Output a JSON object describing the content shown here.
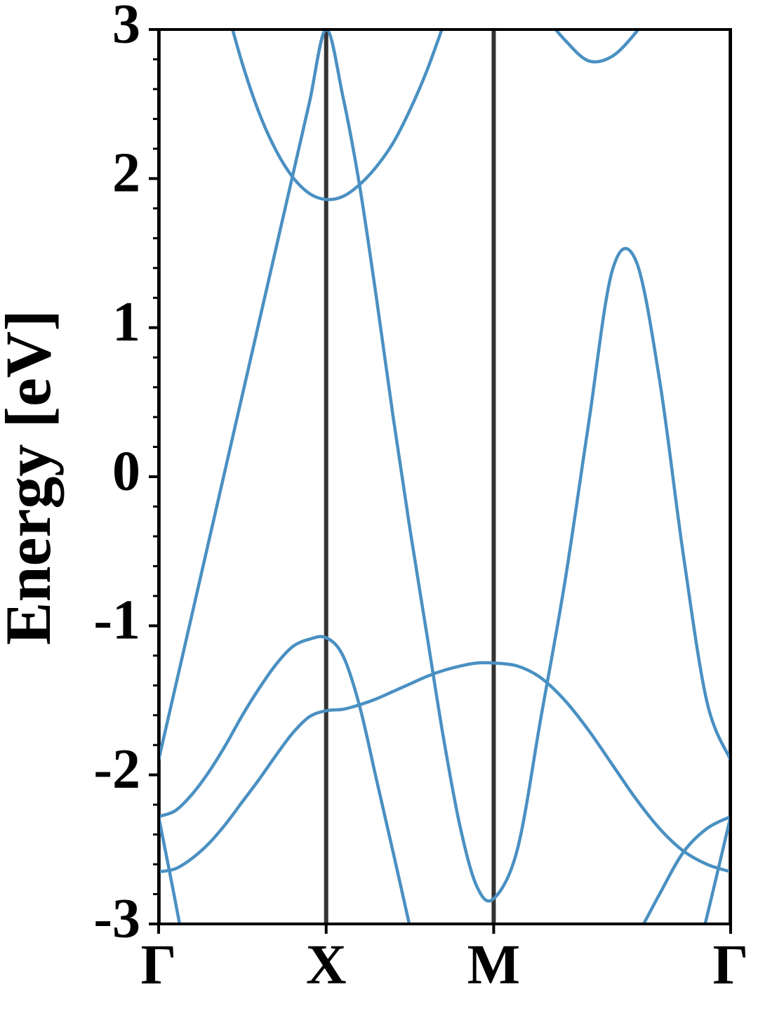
{
  "chart_data": {
    "type": "line",
    "y_label": "Energy [eV]",
    "x": [
      0,
      0.1,
      0.2,
      0.3,
      0.4,
      0.5,
      0.6,
      0.7,
      0.8,
      0.9,
      1.0,
      1.1,
      1.2,
      1.3,
      1.4,
      1.5,
      1.6,
      1.7,
      1.8,
      1.9,
      2.0,
      2.1414,
      2.2828,
      2.4243,
      2.5657,
      2.7071,
      2.8485,
      2.9899,
      3.1314,
      3.2728,
      3.4142
    ],
    "xlim": [
      0,
      3.4142
    ],
    "xticks": [
      {
        "value": 0,
        "label": "Γ"
      },
      {
        "value": 1,
        "label": "X"
      },
      {
        "value": 2,
        "label": "M"
      },
      {
        "value": 3.4142,
        "label": "Γ"
      }
    ],
    "xgrid": true,
    "ylim": [
      -3,
      3
    ],
    "yticks": [
      -3,
      -2,
      -1,
      0,
      1,
      2,
      3
    ],
    "y_minor_ticks": [
      -2.8,
      -2.6,
      -2.4,
      -2.2,
      -1.8,
      -1.6,
      -1.4,
      -1.2,
      -0.8,
      -0.6,
      -0.4,
      -0.2,
      0.2,
      0.4,
      0.6,
      0.8,
      1.2,
      1.4,
      1.6,
      1.8,
      2.2,
      2.4,
      2.6,
      2.8
    ],
    "series": [
      {
        "color": "#4a90c2",
        "values": [
          -2.65,
          -2.63,
          -2.56,
          -2.46,
          -2.33,
          -2.18,
          -2.03,
          -1.87,
          -1.72,
          -1.61,
          -1.57,
          -1.56,
          -1.53,
          -1.49,
          -1.44,
          -1.39,
          -1.34,
          -1.3,
          -1.27,
          -1.25,
          -1.25,
          -1.27,
          -1.35,
          -1.5,
          -1.7,
          -1.93,
          -2.16,
          -2.36,
          -2.51,
          -2.6,
          -2.65
        ]
      },
      {
        "color": "#4a90c2",
        "values": [
          -2.28,
          -2.24,
          -2.13,
          -1.98,
          -1.8,
          -1.6,
          -1.42,
          -1.26,
          -1.14,
          -1.09,
          -1.08,
          -1.2,
          -1.54,
          -2.03,
          -2.52,
          -3.02,
          null,
          null,
          null,
          null,
          null,
          null,
          null,
          null,
          null,
          null,
          -3.1,
          -2.8,
          -2.52,
          -2.36,
          -2.28
        ]
      },
      {
        "color": "#4a90c2",
        "values": [
          -1.9,
          -1.41,
          -0.92,
          -0.43,
          0.06,
          0.55,
          1.04,
          1.53,
          2.02,
          2.51,
          3.0,
          2.55,
          1.95,
          1.2,
          0.4,
          -0.35,
          -1.05,
          -1.75,
          -2.35,
          -2.75,
          -2.83,
          -2.5,
          -1.61,
          -0.71,
          0.35,
          1.38,
          1.45,
          0.65,
          -0.52,
          -1.51,
          -1.9
        ]
      },
      {
        "color": "#4a90c2",
        "values": [
          -2.28,
          -2.85,
          -3.45,
          null,
          null,
          null,
          null,
          null,
          null,
          null,
          null,
          null,
          null,
          null,
          null,
          null,
          null,
          null,
          null,
          null,
          null,
          null,
          null,
          null,
          null,
          null,
          null,
          null,
          -3.6,
          -2.95,
          -2.28
        ]
      },
      {
        "color": "#4a90c2",
        "values": [
          null,
          null,
          null,
          null,
          3.17,
          2.77,
          2.44,
          2.19,
          2.01,
          1.9,
          1.86,
          1.88,
          1.96,
          2.08,
          2.24,
          2.46,
          2.72,
          3.03,
          null,
          null,
          null,
          null,
          null,
          null,
          null,
          null,
          null,
          null,
          null,
          null,
          null
        ]
      },
      {
        "color": "#4a90c2",
        "values": [
          null,
          null,
          null,
          null,
          null,
          null,
          null,
          null,
          null,
          null,
          null,
          null,
          null,
          null,
          null,
          null,
          null,
          null,
          null,
          null,
          null,
          null,
          3.12,
          2.93,
          2.79,
          2.82,
          2.98,
          3.2,
          null,
          null,
          null
        ]
      }
    ]
  }
}
